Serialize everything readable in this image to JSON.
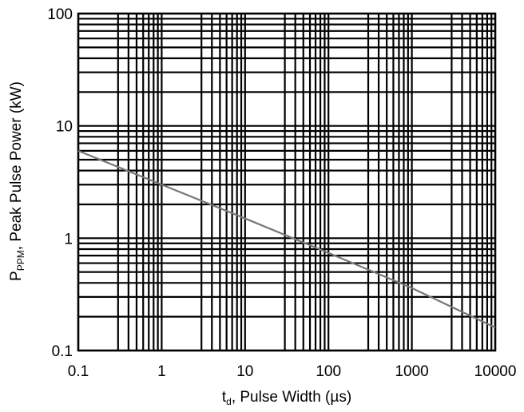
{
  "chart_data": {
    "type": "line",
    "title": "",
    "xlabel": {
      "main": "t",
      "sub": "d",
      "rest": ", Pulse Width (µs)"
    },
    "ylabel": {
      "main": "P",
      "sub": "PPM",
      "rest": ", Peak Pulse Power (kW)"
    },
    "xscale": "log",
    "yscale": "log",
    "xlim": [
      0.1,
      10000
    ],
    "ylim": [
      0.1,
      100
    ],
    "xticks": [
      0.1,
      1,
      10,
      100,
      1000,
      10000
    ],
    "xtick_labels": [
      "0.1",
      "1",
      "10",
      "100",
      "1000",
      "10000"
    ],
    "yticks": [
      0.1,
      1,
      10,
      100
    ],
    "ytick_labels": [
      "0.1",
      "1",
      "10",
      "100"
    ],
    "grid": true,
    "series": [
      {
        "x": [
          0.1,
          1,
          10,
          100,
          1000,
          10000
        ],
        "y": [
          6.0,
          3.0,
          1.5,
          0.74,
          0.36,
          0.16
        ],
        "color": "#777777"
      }
    ]
  }
}
